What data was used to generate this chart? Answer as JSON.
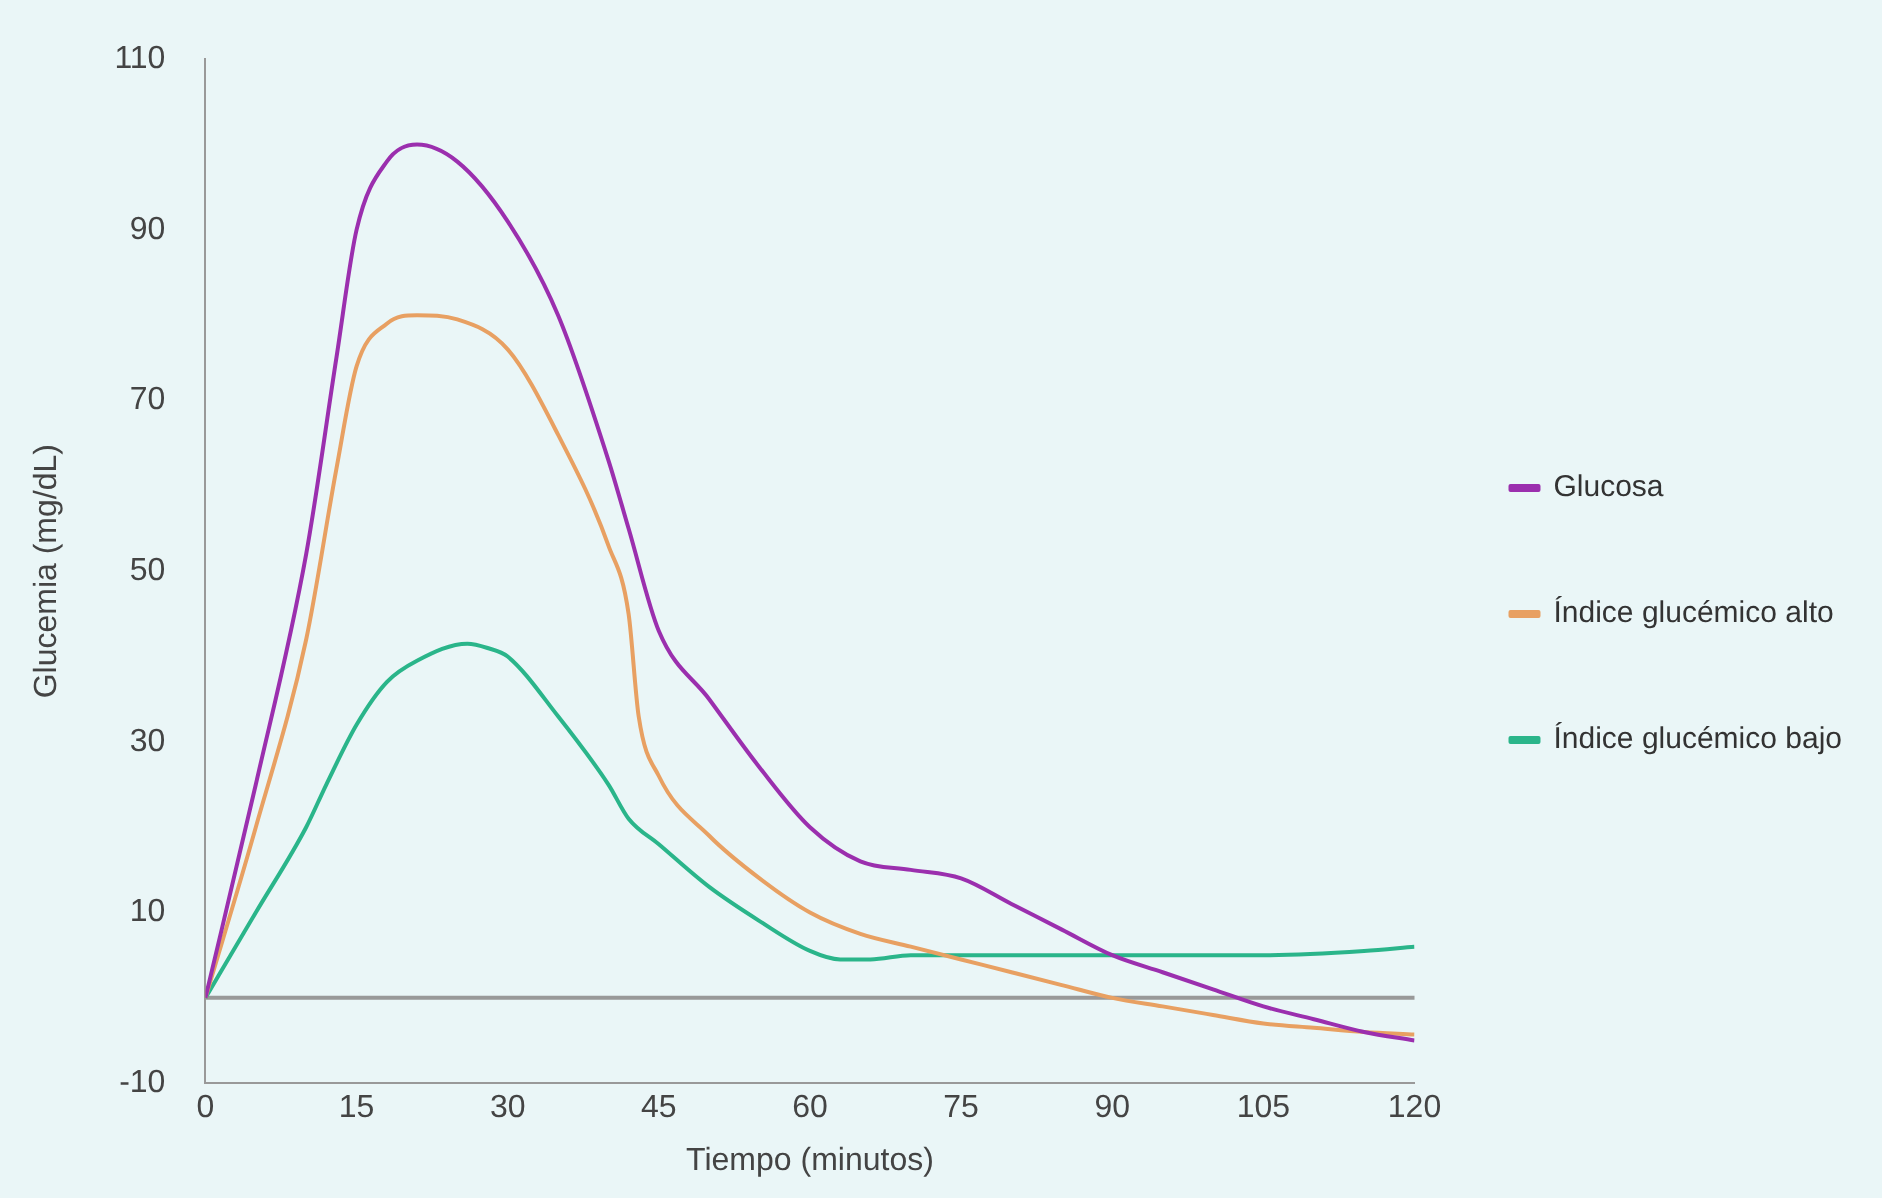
{
  "chart_data": {
    "type": "line",
    "xlabel": "Tiempo (minutos)",
    "ylabel": "Glucemia (mg/dL)",
    "xlim": [
      0,
      120
    ],
    "xticks": [
      0,
      15,
      30,
      45,
      60,
      75,
      90,
      105,
      120
    ],
    "ylim": [
      -10,
      110
    ],
    "yticks": [
      -10,
      10,
      30,
      50,
      70,
      90,
      110
    ],
    "grid": false,
    "legend": "right",
    "marker": "none",
    "line_style": "solid",
    "series": [
      {
        "name": "Glucosa",
        "color": "#9b2fae",
        "x": [
          0,
          5,
          10,
          13,
          15,
          18,
          21,
          25,
          30,
          35,
          40,
          42,
          45,
          50,
          55,
          60,
          65,
          70,
          75,
          80,
          85,
          90,
          95,
          100,
          105,
          110,
          115,
          120
        ],
        "values": [
          0,
          25,
          52,
          75,
          90,
          98,
          100,
          98,
          91,
          80,
          63,
          55,
          43,
          35,
          27,
          20,
          16,
          15,
          14,
          11,
          8,
          5,
          3,
          1,
          -1,
          -2.5,
          -4,
          -5
        ]
      },
      {
        "name": "Índice glucémico alto",
        "color": "#e8a062",
        "x": [
          0,
          5,
          10,
          13,
          15,
          18,
          21,
          25,
          30,
          35,
          40,
          42,
          43,
          45,
          50,
          55,
          60,
          65,
          70,
          75,
          80,
          85,
          90,
          95,
          100,
          105,
          110,
          115,
          120
        ],
        "values": [
          0,
          20,
          42,
          62,
          74,
          79,
          80,
          79.5,
          76,
          66,
          53,
          45,
          33,
          26,
          19,
          14,
          10,
          7.5,
          6,
          4.5,
          3,
          1.5,
          0,
          -1,
          -2,
          -3,
          -3.5,
          -4,
          -4.3
        ]
      },
      {
        "name": "Índice glucémico bajo",
        "color": "#2ab58a",
        "x": [
          0,
          5,
          10,
          12,
          15,
          18,
          21,
          26,
          28,
          30,
          35,
          40,
          42,
          45,
          50,
          55,
          60,
          63,
          66,
          70,
          75,
          90,
          105,
          115,
          120
        ],
        "values": [
          0,
          10,
          20,
          25,
          32,
          37,
          39.5,
          41.5,
          41,
          40,
          33,
          25,
          21,
          18,
          13,
          9,
          5.5,
          4.5,
          4.5,
          5,
          5,
          5,
          5,
          5.5,
          6
        ]
      }
    ]
  }
}
